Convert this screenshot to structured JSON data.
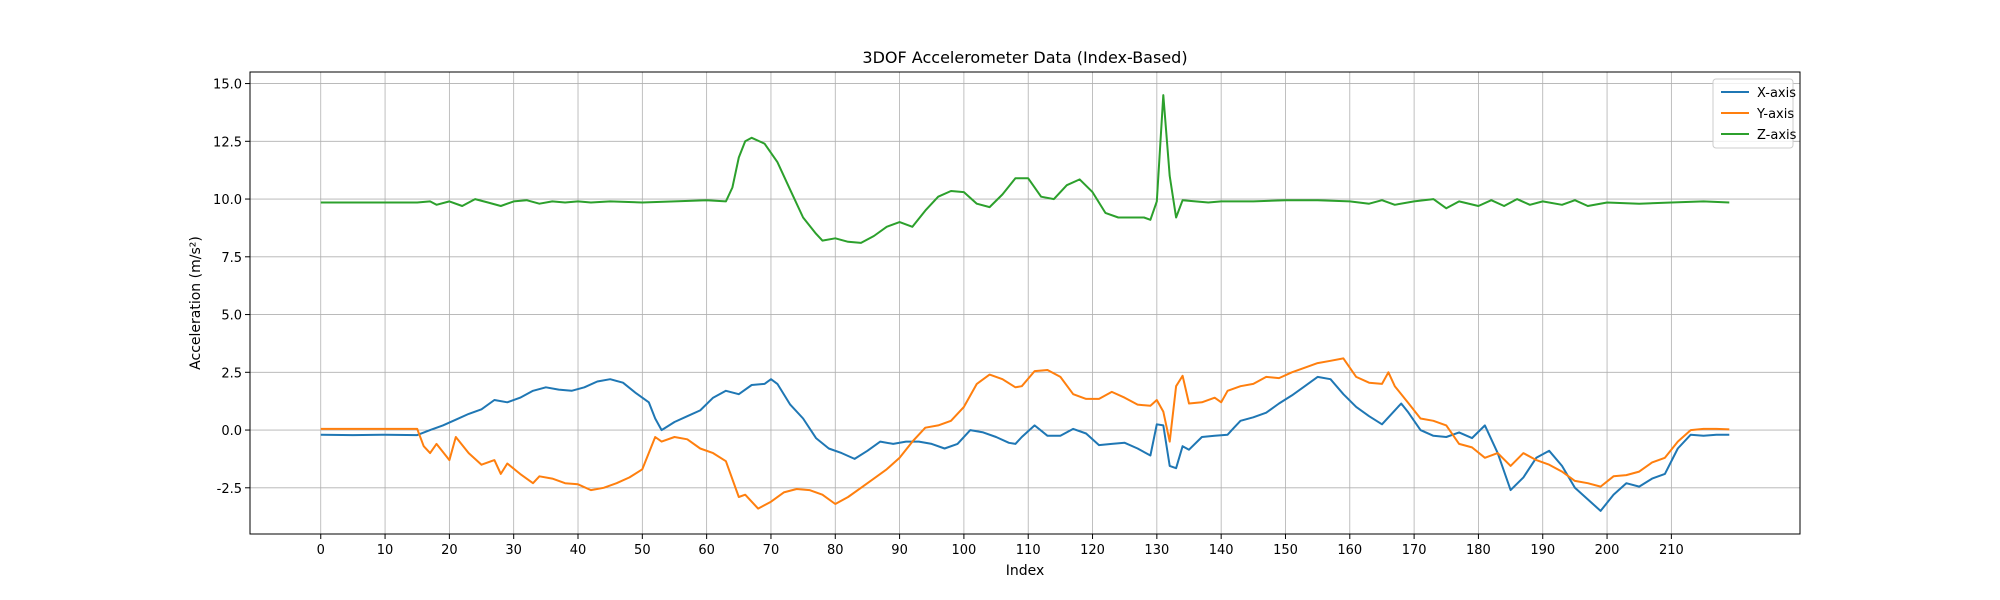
{
  "chart_data": {
    "type": "line",
    "title": "3DOF Accelerometer Data (Index-Based)",
    "xlabel": "Index",
    "ylabel": "Acceleration (m/s²)",
    "xlim": [
      -11,
      230
    ],
    "ylim": [
      -4.5,
      15.5
    ],
    "xticks": [
      0,
      10,
      20,
      30,
      40,
      50,
      60,
      70,
      80,
      90,
      100,
      110,
      120,
      130,
      140,
      150,
      160,
      170,
      180,
      190,
      200,
      210
    ],
    "yticks": [
      -2.5,
      0.0,
      2.5,
      5.0,
      7.5,
      10.0,
      12.5,
      15.0
    ],
    "grid": true,
    "legend": "top-right",
    "series": [
      {
        "name": "X-axis",
        "color": "#1f77b4",
        "points": [
          [
            0,
            -0.2
          ],
          [
            5,
            -0.22
          ],
          [
            10,
            -0.2
          ],
          [
            15,
            -0.22
          ],
          [
            17,
            0.0
          ],
          [
            19,
            0.2
          ],
          [
            21,
            0.45
          ],
          [
            23,
            0.7
          ],
          [
            25,
            0.9
          ],
          [
            27,
            1.3
          ],
          [
            29,
            1.2
          ],
          [
            31,
            1.4
          ],
          [
            33,
            1.7
          ],
          [
            35,
            1.85
          ],
          [
            37,
            1.75
          ],
          [
            39,
            1.7
          ],
          [
            41,
            1.85
          ],
          [
            43,
            2.1
          ],
          [
            45,
            2.2
          ],
          [
            47,
            2.05
          ],
          [
            49,
            1.6
          ],
          [
            51,
            1.2
          ],
          [
            52,
            0.5
          ],
          [
            53,
            0.0
          ],
          [
            55,
            0.35
          ],
          [
            57,
            0.6
          ],
          [
            59,
            0.85
          ],
          [
            61,
            1.4
          ],
          [
            63,
            1.7
          ],
          [
            65,
            1.55
          ],
          [
            67,
            1.95
          ],
          [
            69,
            2.0
          ],
          [
            70,
            2.2
          ],
          [
            71,
            2.0
          ],
          [
            73,
            1.1
          ],
          [
            75,
            0.5
          ],
          [
            77,
            -0.35
          ],
          [
            79,
            -0.8
          ],
          [
            81,
            -1.0
          ],
          [
            83,
            -1.25
          ],
          [
            85,
            -0.9
          ],
          [
            87,
            -0.5
          ],
          [
            89,
            -0.6
          ],
          [
            91,
            -0.5
          ],
          [
            93,
            -0.5
          ],
          [
            95,
            -0.6
          ],
          [
            97,
            -0.8
          ],
          [
            99,
            -0.6
          ],
          [
            101,
            0.0
          ],
          [
            103,
            -0.1
          ],
          [
            105,
            -0.3
          ],
          [
            107,
            -0.55
          ],
          [
            108,
            -0.6
          ],
          [
            109,
            -0.3
          ],
          [
            111,
            0.2
          ],
          [
            113,
            -0.25
          ],
          [
            115,
            -0.25
          ],
          [
            117,
            0.05
          ],
          [
            119,
            -0.15
          ],
          [
            121,
            -0.65
          ],
          [
            123,
            -0.6
          ],
          [
            125,
            -0.55
          ],
          [
            127,
            -0.8
          ],
          [
            129,
            -1.1
          ],
          [
            130,
            0.25
          ],
          [
            131,
            0.2
          ],
          [
            132,
            -1.55
          ],
          [
            133,
            -1.65
          ],
          [
            134,
            -0.7
          ],
          [
            135,
            -0.85
          ],
          [
            137,
            -0.3
          ],
          [
            139,
            -0.25
          ],
          [
            141,
            -0.2
          ],
          [
            142,
            0.1
          ],
          [
            143,
            0.4
          ],
          [
            145,
            0.55
          ],
          [
            147,
            0.75
          ],
          [
            149,
            1.15
          ],
          [
            151,
            1.5
          ],
          [
            153,
            1.9
          ],
          [
            155,
            2.3
          ],
          [
            157,
            2.2
          ],
          [
            159,
            1.55
          ],
          [
            161,
            1.0
          ],
          [
            163,
            0.6
          ],
          [
            165,
            0.25
          ],
          [
            167,
            0.85
          ],
          [
            168,
            1.15
          ],
          [
            169,
            0.8
          ],
          [
            171,
            0.0
          ],
          [
            173,
            -0.25
          ],
          [
            175,
            -0.3
          ],
          [
            177,
            -0.1
          ],
          [
            179,
            -0.35
          ],
          [
            181,
            0.2
          ],
          [
            183,
            -1.0
          ],
          [
            185,
            -2.6
          ],
          [
            187,
            -2.05
          ],
          [
            189,
            -1.2
          ],
          [
            191,
            -0.9
          ],
          [
            193,
            -1.55
          ],
          [
            195,
            -2.5
          ],
          [
            197,
            -3.0
          ],
          [
            199,
            -3.5
          ],
          [
            201,
            -2.8
          ],
          [
            203,
            -2.3
          ],
          [
            205,
            -2.45
          ],
          [
            207,
            -2.1
          ],
          [
            209,
            -1.9
          ],
          [
            211,
            -0.8
          ],
          [
            213,
            -0.2
          ],
          [
            215,
            -0.25
          ],
          [
            217,
            -0.2
          ],
          [
            219,
            -0.2
          ]
        ]
      },
      {
        "name": "Y-axis",
        "color": "#ff7f0e",
        "points": [
          [
            0,
            0.05
          ],
          [
            5,
            0.05
          ],
          [
            10,
            0.05
          ],
          [
            15,
            0.05
          ],
          [
            16,
            -0.7
          ],
          [
            17,
            -1.0
          ],
          [
            18,
            -0.6
          ],
          [
            20,
            -1.3
          ],
          [
            21,
            -0.3
          ],
          [
            23,
            -1.0
          ],
          [
            25,
            -1.5
          ],
          [
            27,
            -1.3
          ],
          [
            28,
            -1.9
          ],
          [
            29,
            -1.45
          ],
          [
            31,
            -1.9
          ],
          [
            33,
            -2.3
          ],
          [
            34,
            -2.0
          ],
          [
            36,
            -2.1
          ],
          [
            38,
            -2.3
          ],
          [
            40,
            -2.35
          ],
          [
            42,
            -2.6
          ],
          [
            44,
            -2.5
          ],
          [
            46,
            -2.3
          ],
          [
            48,
            -2.05
          ],
          [
            50,
            -1.7
          ],
          [
            52,
            -0.3
          ],
          [
            53,
            -0.5
          ],
          [
            55,
            -0.3
          ],
          [
            57,
            -0.4
          ],
          [
            59,
            -0.8
          ],
          [
            61,
            -1.0
          ],
          [
            63,
            -1.35
          ],
          [
            65,
            -2.9
          ],
          [
            66,
            -2.8
          ],
          [
            68,
            -3.4
          ],
          [
            70,
            -3.1
          ],
          [
            72,
            -2.7
          ],
          [
            74,
            -2.55
          ],
          [
            76,
            -2.6
          ],
          [
            78,
            -2.8
          ],
          [
            80,
            -3.2
          ],
          [
            82,
            -2.9
          ],
          [
            84,
            -2.5
          ],
          [
            86,
            -2.1
          ],
          [
            88,
            -1.7
          ],
          [
            90,
            -1.2
          ],
          [
            92,
            -0.5
          ],
          [
            94,
            0.1
          ],
          [
            96,
            0.2
          ],
          [
            98,
            0.4
          ],
          [
            100,
            1.0
          ],
          [
            102,
            2.0
          ],
          [
            104,
            2.4
          ],
          [
            106,
            2.2
          ],
          [
            108,
            1.85
          ],
          [
            109,
            1.9
          ],
          [
            111,
            2.55
          ],
          [
            113,
            2.6
          ],
          [
            115,
            2.3
          ],
          [
            117,
            1.55
          ],
          [
            119,
            1.35
          ],
          [
            121,
            1.35
          ],
          [
            123,
            1.65
          ],
          [
            125,
            1.4
          ],
          [
            127,
            1.1
          ],
          [
            129,
            1.05
          ],
          [
            130,
            1.3
          ],
          [
            131,
            0.8
          ],
          [
            132,
            -0.5
          ],
          [
            133,
            1.9
          ],
          [
            134,
            2.35
          ],
          [
            135,
            1.15
          ],
          [
            137,
            1.2
          ],
          [
            139,
            1.4
          ],
          [
            140,
            1.2
          ],
          [
            141,
            1.7
          ],
          [
            143,
            1.9
          ],
          [
            145,
            2.0
          ],
          [
            147,
            2.3
          ],
          [
            149,
            2.25
          ],
          [
            151,
            2.5
          ],
          [
            153,
            2.7
          ],
          [
            155,
            2.9
          ],
          [
            157,
            3.0
          ],
          [
            159,
            3.1
          ],
          [
            161,
            2.3
          ],
          [
            163,
            2.05
          ],
          [
            165,
            2.0
          ],
          [
            166,
            2.5
          ],
          [
            167,
            1.9
          ],
          [
            169,
            1.2
          ],
          [
            171,
            0.5
          ],
          [
            173,
            0.4
          ],
          [
            175,
            0.2
          ],
          [
            177,
            -0.6
          ],
          [
            179,
            -0.75
          ],
          [
            181,
            -1.2
          ],
          [
            183,
            -1.0
          ],
          [
            185,
            -1.55
          ],
          [
            187,
            -1.0
          ],
          [
            189,
            -1.3
          ],
          [
            191,
            -1.5
          ],
          [
            193,
            -1.8
          ],
          [
            195,
            -2.2
          ],
          [
            197,
            -2.3
          ],
          [
            199,
            -2.45
          ],
          [
            201,
            -2.0
          ],
          [
            203,
            -1.95
          ],
          [
            205,
            -1.8
          ],
          [
            207,
            -1.4
          ],
          [
            209,
            -1.2
          ],
          [
            211,
            -0.5
          ],
          [
            213,
            0.0
          ],
          [
            215,
            0.05
          ],
          [
            217,
            0.05
          ],
          [
            219,
            0.03
          ]
        ]
      },
      {
        "name": "Z-axis",
        "color": "#2ca02c",
        "points": [
          [
            0,
            9.85
          ],
          [
            5,
            9.85
          ],
          [
            10,
            9.85
          ],
          [
            15,
            9.85
          ],
          [
            17,
            9.9
          ],
          [
            18,
            9.75
          ],
          [
            20,
            9.9
          ],
          [
            22,
            9.7
          ],
          [
            24,
            10.0
          ],
          [
            26,
            9.85
          ],
          [
            28,
            9.7
          ],
          [
            30,
            9.9
          ],
          [
            32,
            9.95
          ],
          [
            34,
            9.8
          ],
          [
            36,
            9.9
          ],
          [
            38,
            9.85
          ],
          [
            40,
            9.9
          ],
          [
            42,
            9.85
          ],
          [
            45,
            9.9
          ],
          [
            50,
            9.85
          ],
          [
            55,
            9.9
          ],
          [
            60,
            9.95
          ],
          [
            63,
            9.9
          ],
          [
            64,
            10.5
          ],
          [
            65,
            11.8
          ],
          [
            66,
            12.5
          ],
          [
            67,
            12.65
          ],
          [
            69,
            12.4
          ],
          [
            71,
            11.6
          ],
          [
            73,
            10.4
          ],
          [
            75,
            9.2
          ],
          [
            77,
            8.5
          ],
          [
            78,
            8.2
          ],
          [
            80,
            8.3
          ],
          [
            82,
            8.15
          ],
          [
            84,
            8.1
          ],
          [
            86,
            8.4
          ],
          [
            88,
            8.8
          ],
          [
            90,
            9.0
          ],
          [
            92,
            8.8
          ],
          [
            94,
            9.5
          ],
          [
            96,
            10.1
          ],
          [
            98,
            10.35
          ],
          [
            100,
            10.3
          ],
          [
            102,
            9.8
          ],
          [
            104,
            9.65
          ],
          [
            106,
            10.2
          ],
          [
            108,
            10.9
          ],
          [
            110,
            10.9
          ],
          [
            112,
            10.1
          ],
          [
            114,
            10.0
          ],
          [
            116,
            10.6
          ],
          [
            118,
            10.85
          ],
          [
            120,
            10.3
          ],
          [
            122,
            9.4
          ],
          [
            124,
            9.2
          ],
          [
            126,
            9.2
          ],
          [
            128,
            9.2
          ],
          [
            129,
            9.1
          ],
          [
            130,
            9.9
          ],
          [
            131,
            14.5
          ],
          [
            132,
            11.0
          ],
          [
            133,
            9.2
          ],
          [
            134,
            9.95
          ],
          [
            136,
            9.9
          ],
          [
            138,
            9.85
          ],
          [
            140,
            9.9
          ],
          [
            145,
            9.9
          ],
          [
            150,
            9.95
          ],
          [
            155,
            9.95
          ],
          [
            160,
            9.9
          ],
          [
            163,
            9.8
          ],
          [
            165,
            9.95
          ],
          [
            167,
            9.75
          ],
          [
            170,
            9.9
          ],
          [
            173,
            10.0
          ],
          [
            175,
            9.6
          ],
          [
            177,
            9.9
          ],
          [
            180,
            9.7
          ],
          [
            182,
            9.95
          ],
          [
            184,
            9.7
          ],
          [
            186,
            10.0
          ],
          [
            188,
            9.75
          ],
          [
            190,
            9.9
          ],
          [
            193,
            9.75
          ],
          [
            195,
            9.95
          ],
          [
            197,
            9.7
          ],
          [
            200,
            9.85
          ],
          [
            205,
            9.8
          ],
          [
            210,
            9.85
          ],
          [
            215,
            9.9
          ],
          [
            219,
            9.85
          ]
        ]
      }
    ]
  }
}
